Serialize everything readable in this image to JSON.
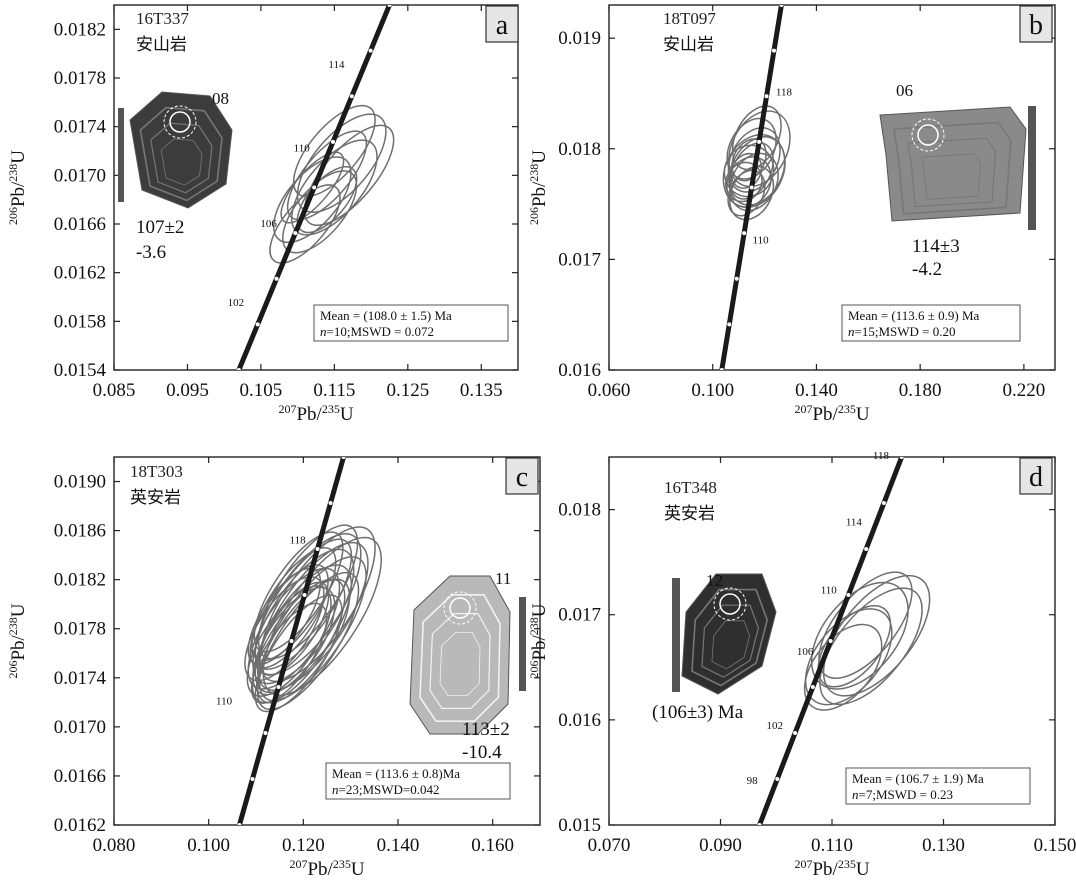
{
  "chart_data": [
    {
      "type": "scatter",
      "panel": "a",
      "sample": "16T337",
      "rock": "安山岩",
      "xlabel_main": "Pb/",
      "xlabel_iso1": "207",
      "xlabel_iso2": "235",
      "xlabel_end": "U",
      "ylabel_iso1": "206",
      "ylabel_iso2": "238",
      "ylabel_main": "Pb/",
      "ylabel_end": "U",
      "xlim": [
        0.085,
        0.14
      ],
      "ylim": [
        0.0154,
        0.0184
      ],
      "xticks": [
        "0.085",
        "0.095",
        "0.105",
        "0.115",
        "0.125",
        "0.135"
      ],
      "yticks": [
        "0.0154",
        "0.0158",
        "0.0162",
        "0.0166",
        "0.0170",
        "0.0174",
        "0.0178",
        "0.0182"
      ],
      "concordia_ages": [
        "102",
        "106",
        "110",
        "114"
      ],
      "ellipse_count": 10,
      "grain": {
        "label": "08",
        "age": "107±2",
        "value": "-3.6"
      },
      "mean_line1": "Mean = (108.0 ± 1.5) Ma",
      "mean_n_label": "n",
      "mean_line2": "=10;MSWD = 0.072",
      "concordant_age_ma": 108.0,
      "age_error_ma": 1.5,
      "n": 10,
      "mswd": 0.072
    },
    {
      "type": "scatter",
      "panel": "b",
      "sample": "18T097",
      "rock": "安山岩",
      "xlabel_main": "Pb/",
      "xlabel_iso1": "207",
      "xlabel_iso2": "235",
      "xlabel_end": "U",
      "ylabel_iso1": "206",
      "ylabel_iso2": "238",
      "ylabel_main": "Pb/",
      "ylabel_end": "U",
      "xlim": [
        0.06,
        0.232
      ],
      "ylim": [
        0.016,
        0.0193
      ],
      "xticks": [
        "0.060",
        "0.100",
        "0.140",
        "0.180",
        "0.220"
      ],
      "yticks": [
        "0.016",
        "0.017",
        "0.018",
        "0.019"
      ],
      "concordia_ages": [
        "110",
        "118"
      ],
      "ellipse_count": 15,
      "grain": {
        "label": "06",
        "age": "114±3",
        "value": "-4.2"
      },
      "mean_line1": "Mean = (113.6 ± 0.9) Ma",
      "mean_n_label": "n",
      "mean_line2": "=15;MSWD = 0.20",
      "concordant_age_ma": 113.6,
      "age_error_ma": 0.9,
      "n": 15,
      "mswd": 0.2
    },
    {
      "type": "scatter",
      "panel": "c",
      "sample": "18T303",
      "rock": "英安岩",
      "xlabel_main": "Pb/",
      "xlabel_iso1": "207",
      "xlabel_iso2": "235",
      "xlabel_end": "U",
      "ylabel_iso1": "206",
      "ylabel_iso2": "238",
      "ylabel_main": "Pb/",
      "ylabel_end": "U",
      "xlim": [
        0.08,
        0.17
      ],
      "ylim": [
        0.0162,
        0.0192
      ],
      "xticks": [
        "0.080",
        "0.100",
        "0.120",
        "0.140",
        "0.160"
      ],
      "yticks": [
        "0.0162",
        "0.0166",
        "0.0170",
        "0.0174",
        "0.0178",
        "0.0182",
        "0.0186",
        "0.0190"
      ],
      "concordia_ages": [
        "110",
        "118"
      ],
      "ellipse_count": 23,
      "grain": {
        "label": "11",
        "age": "113±2",
        "value": "-10.4"
      },
      "mean_line1": "Mean = (113.6 ± 0.8)Ma",
      "mean_n_label": "n",
      "mean_line2": "=23;MSWD=0.042",
      "concordant_age_ma": 113.6,
      "age_error_ma": 0.8,
      "n": 23,
      "mswd": 0.042
    },
    {
      "type": "scatter",
      "panel": "d",
      "sample": "16T348",
      "rock": "英安岩",
      "xlabel_main": "Pb/",
      "xlabel_iso1": "207",
      "xlabel_iso2": "235",
      "xlabel_end": "U",
      "ylabel_iso1": "206",
      "ylabel_iso2": "238",
      "ylabel_main": "Pb/",
      "ylabel_end": "U",
      "xlim": [
        0.07,
        0.15
      ],
      "ylim": [
        0.015,
        0.0185
      ],
      "xticks": [
        "0.070",
        "0.090",
        "0.110",
        "0.130",
        "0.150"
      ],
      "yticks": [
        "0.015",
        "0.016",
        "0.017",
        "0.018"
      ],
      "concordia_ages": [
        "98",
        "102",
        "106",
        "110",
        "114",
        "118"
      ],
      "ellipse_count": 7,
      "grain": {
        "label": "12",
        "age": "(106±3) Ma",
        "value": ""
      },
      "mean_line1": "Mean = (106.7 ± 1.9) Ma",
      "mean_n_label": "n",
      "mean_line2": "=7;MSWD = 0.23",
      "concordant_age_ma": 106.7,
      "age_error_ma": 1.9,
      "n": 7,
      "mswd": 0.23
    }
  ],
  "colors": {
    "ellipse": "#6e6e6e",
    "concordia": "#1a1a1a",
    "scale_bar": "#555555",
    "label_box": "#e6e6e6"
  }
}
